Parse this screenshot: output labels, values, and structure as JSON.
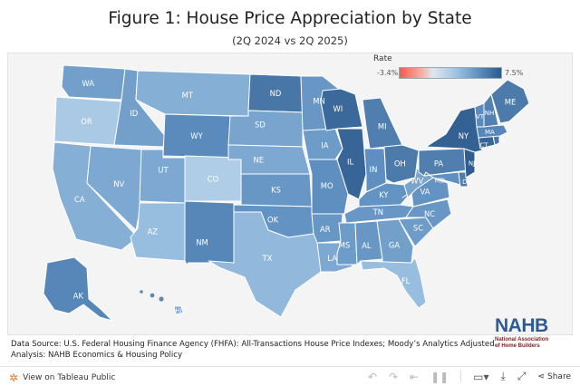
{
  "header": {
    "title": "Figure 1: House Price Appreciation by State",
    "subtitle": "(2Q 2024 vs 2Q 2025)"
  },
  "legend": {
    "title": "Rate",
    "min_label": "-3.4%",
    "max_label": "7.5%",
    "min_value": -3.4,
    "max_value": 7.5,
    "colors": {
      "low": "#f25e4e",
      "mid": "#dfe6ee",
      "high": "#2a5a8e"
    }
  },
  "map": {
    "state_fill_levels": {
      "WA": 0.62,
      "OR": 0.42,
      "CA": 0.55,
      "NV": 0.58,
      "ID": 0.62,
      "MT": 0.55,
      "WY": 0.72,
      "UT": 0.58,
      "AZ": 0.48,
      "CO": 0.4,
      "NM": 0.74,
      "ND": 0.82,
      "SD": 0.6,
      "NE": 0.58,
      "KS": 0.66,
      "OK": 0.68,
      "TX": 0.5,
      "MN": 0.66,
      "IA": 0.64,
      "MO": 0.7,
      "AR": 0.66,
      "LA": 0.58,
      "WI": 0.88,
      "IL": 0.9,
      "MI": 0.78,
      "IN": 0.7,
      "OH": 0.8,
      "KY": 0.68,
      "TN": 0.66,
      "MS": 0.64,
      "AL": 0.66,
      "GA": 0.62,
      "FL": 0.48,
      "SC": 0.64,
      "NC": 0.66,
      "VA": 0.68,
      "WV": 0.6,
      "PA": 0.78,
      "NY": 0.92,
      "VT": 0.72,
      "NH": 0.76,
      "ME": 0.8,
      "MA": 0.74,
      "RI": 0.82,
      "CT": 0.9,
      "NJ": 0.94,
      "DE": 0.8,
      "MD": 0.7,
      "AK": 0.74,
      "HI": 0.6
    },
    "labels": {
      "WA": "WA",
      "OR": "OR",
      "CA": "CA",
      "NV": "NV",
      "ID": "ID",
      "MT": "MT",
      "WY": "WY",
      "UT": "UT",
      "AZ": "AZ",
      "CO": "CO",
      "NM": "NM",
      "ND": "ND",
      "SD": "SD",
      "NE": "NE",
      "KS": "KS",
      "OK": "OK",
      "TX": "TX",
      "MN": "MN",
      "IA": "IA",
      "MO": "MO",
      "AR": "AR",
      "LA": "LA",
      "WI": "WI",
      "IL": "IL",
      "MI": "MI",
      "IN": "IN",
      "OH": "OH",
      "KY": "KY",
      "TN": "TN",
      "MS": "MS",
      "AL": "AL",
      "GA": "GA",
      "FL": "FL",
      "SC": "SC",
      "NC": "NC",
      "VA": "VA",
      "WV": "WV",
      "PA": "PA",
      "NY": "NY",
      "VT": "VT",
      "NH": "NH",
      "ME": "ME",
      "MA": "MA",
      "RI": "RI",
      "CT": "CT",
      "NJ": "NJ",
      "DE": "DE",
      "MD": "MD",
      "AK": "AK",
      "HI": "HI"
    }
  },
  "source": {
    "line1": "Data Source: U.S. Federal Housing Finance Agency (FHFA): All-Transactions House Price Indexes; Moody’s Analytics Adjusted.",
    "line2": "Analysis: NAHB Economics & Housing Policy"
  },
  "logo": {
    "name": "NAHB",
    "sub1": "National Association",
    "sub2": "of Home Builders"
  },
  "footer": {
    "tableau_label": "View on Tableau Public",
    "share_label": "Share",
    "icons": [
      "undo-icon",
      "redo-icon",
      "revert-icon",
      "pause-icon",
      "device-preview-icon",
      "download-icon",
      "fullscreen-icon",
      "share-icon"
    ]
  }
}
